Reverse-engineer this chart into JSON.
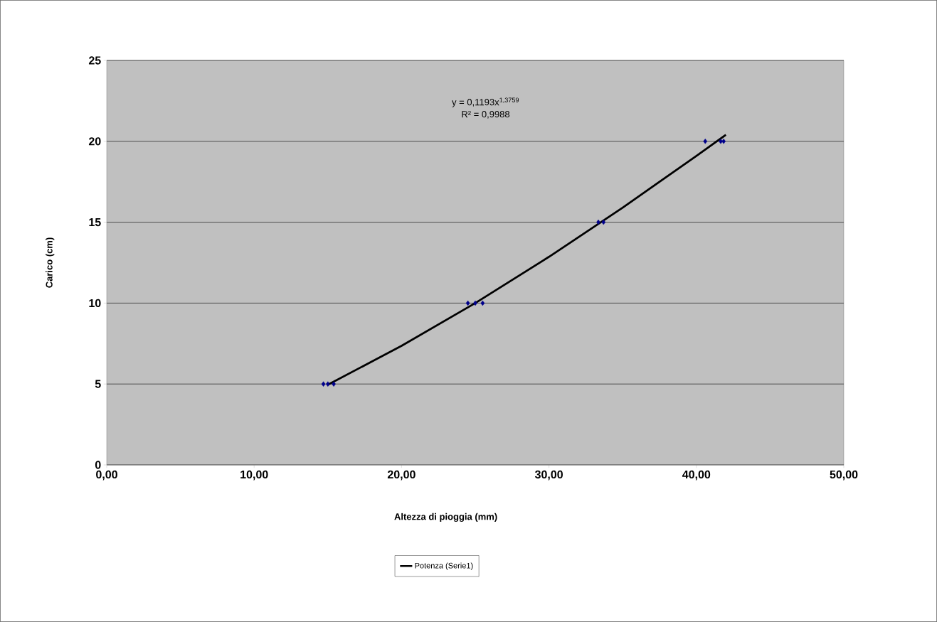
{
  "chart_data": {
    "type": "scatter",
    "xlabel": "Altezza di pioggia (mm)",
    "ylabel": "Carico (cm)",
    "annotations": [
      "y = 0,1193x$^{1,3759}$",
      "R² = 0,9988"
    ],
    "series": [
      {
        "color": "#00008b",
        "marker": "diamond",
        "x": [
          14.7,
          15.0,
          15.4,
          24.5,
          25.0,
          25.5,
          33.35,
          33.7,
          40.6,
          41.65,
          41.85
        ],
        "values": [
          5,
          5,
          5,
          10,
          10,
          10,
          15,
          15,
          20,
          20,
          20
        ]
      },
      {
        "type": "line",
        "name": "Potenza (Serie1)",
        "color": "#000000",
        "marker": "none",
        "line_style": "solid",
        "x": [
          15,
          20,
          25,
          30,
          35,
          40,
          42
        ],
        "values": [
          4.95,
          7.36,
          10.0,
          12.86,
          15.9,
          19.1,
          20.4
        ]
      }
    ],
    "xlim": [
      0,
      50
    ],
    "ylim": [
      0,
      25
    ],
    "xticks": [
      {
        "value": 0,
        "label": "0,00"
      },
      {
        "value": 10,
        "label": "10,00"
      },
      {
        "value": 20,
        "label": "20,00"
      },
      {
        "value": 30,
        "label": "30,00"
      },
      {
        "value": 40,
        "label": "40,00"
      },
      {
        "value": 50,
        "label": "50,00"
      }
    ],
    "yticks": [
      0,
      5,
      10,
      15,
      20,
      25
    ],
    "grid": "y",
    "legend": "bottom"
  }
}
